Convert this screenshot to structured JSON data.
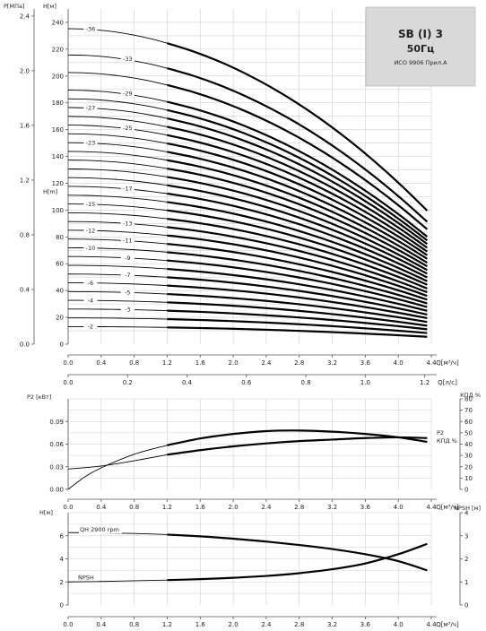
{
  "title_box": {
    "line1": "SB (I) 3",
    "line2": "50Гц",
    "line3": "ИСО 9906 Прил.А",
    "background": "#d9d9d9"
  },
  "chart_data": [
    {
      "type": "line",
      "id": "head",
      "ylabel_left": "P[МПа]",
      "ylabel_h": "H[м]",
      "ylabel_h_mid": "H[m]",
      "xlabel": "Q[м³/ч]",
      "xlabel_ls": "Q[л/с]",
      "x_ticks": [
        "0.0",
        "0.4",
        "0.8",
        "1.2",
        "1.6",
        "2.0",
        "2.4",
        "2.8",
        "3.2",
        "3.6",
        "4.0",
        "4.4"
      ],
      "x_ls_ticks": [
        "0.0",
        "0.2",
        "0.4",
        "0.6",
        "0.8",
        "1.0",
        "1.2"
      ],
      "xlim": [
        0,
        4.4
      ],
      "ylim": [
        0,
        250
      ],
      "grid": true,
      "h_ticks": [
        "0",
        "20",
        "40",
        "60",
        "80",
        "100",
        "120",
        "140",
        "160",
        "180",
        "200",
        "220",
        "240"
      ],
      "h_tick_values": [
        0,
        20,
        40,
        60,
        80,
        100,
        120,
        140,
        160,
        180,
        200,
        220,
        240
      ],
      "p_ticks": [
        "0.0",
        "0.4",
        "0.8",
        "1.2",
        "1.6",
        "2.0",
        "2.4"
      ],
      "p_tick_values": [
        0,
        0.4,
        0.8,
        1.2,
        1.6,
        2.0,
        2.4
      ],
      "stages_x": [
        0,
        1.2,
        4.35
      ],
      "series": [
        {
          "label": "-2",
          "values": [
            13.1,
            12.5,
            5.5
          ],
          "label_at": 0.2
        },
        {
          "label": "",
          "values": [
            19.6,
            18.7,
            8.3
          ],
          "label_at": null
        },
        {
          "label": "-3",
          "values": [
            26.2,
            25.0,
            11.1
          ],
          "label_at": 0.65
        },
        {
          "label": "-4",
          "values": [
            32.7,
            31.2,
            13.8
          ],
          "label_at": 0.2
        },
        {
          "label": "-5",
          "values": [
            39.2,
            37.4,
            16.6
          ],
          "label_at": 0.65
        },
        {
          "label": "-6",
          "values": [
            45.8,
            43.7,
            19.4
          ],
          "label_at": 0.2
        },
        {
          "label": "-7",
          "values": [
            52.3,
            49.9,
            22.1
          ],
          "label_at": 0.65
        },
        {
          "label": "",
          "values": [
            58.8,
            56.1,
            24.9
          ],
          "label_at": null
        },
        {
          "label": "-9",
          "values": [
            65.4,
            62.4,
            27.7
          ],
          "label_at": 0.65
        },
        {
          "label": "-10",
          "values": [
            71.9,
            68.6,
            30.4
          ],
          "label_at": 0.2
        },
        {
          "label": "-11",
          "values": [
            78.4,
            74.8,
            33.2
          ],
          "label_at": 0.65
        },
        {
          "label": "-12",
          "values": [
            85.0,
            81.1,
            36.0
          ],
          "label_at": 0.2
        },
        {
          "label": "-13",
          "values": [
            91.5,
            87.3,
            38.7
          ],
          "label_at": 0.65
        },
        {
          "label": "",
          "values": [
            98.0,
            93.5,
            41.5
          ],
          "label_at": null
        },
        {
          "label": "-15",
          "values": [
            104.6,
            99.8,
            44.3
          ],
          "label_at": 0.2
        },
        {
          "label": "",
          "values": [
            111.1,
            106.0,
            47.0
          ],
          "label_at": null
        },
        {
          "label": "-17",
          "values": [
            117.7,
            112.3,
            49.8
          ],
          "label_at": 0.65
        },
        {
          "label": "",
          "values": [
            124.2,
            118.5,
            52.6
          ],
          "label_at": null
        },
        {
          "label": "",
          "values": [
            130.7,
            124.7,
            55.3
          ],
          "label_at": null
        },
        {
          "label": "",
          "values": [
            137.3,
            131.0,
            58.1
          ],
          "label_at": null
        },
        {
          "label": "",
          "values": [
            143.8,
            137.2,
            60.8
          ],
          "label_at": null
        },
        {
          "label": "-23",
          "values": [
            150.3,
            143.4,
            63.6
          ],
          "label_at": 0.2
        },
        {
          "label": "",
          "values": [
            156.9,
            149.7,
            66.4
          ],
          "label_at": null
        },
        {
          "label": "-25",
          "values": [
            163.4,
            155.9,
            69.1
          ],
          "label_at": 0.65
        },
        {
          "label": "",
          "values": [
            169.9,
            162.1,
            71.9
          ],
          "label_at": null
        },
        {
          "label": "-27",
          "values": [
            176.5,
            168.4,
            74.7
          ],
          "label_at": 0.2
        },
        {
          "label": "",
          "values": [
            183.0,
            174.6,
            77.4
          ],
          "label_at": null
        },
        {
          "label": "-29",
          "values": [
            189.5,
            180.8,
            80.2
          ],
          "label_at": 0.65
        },
        {
          "label": "",
          "values": [
            202.6,
            193.3,
            85.7
          ],
          "label_at": null
        },
        {
          "label": "-33",
          "values": [
            215.7,
            205.8,
            91.3
          ],
          "label_at": 0.65
        },
        {
          "label": "-36",
          "values": [
            235.3,
            224.5,
            99.6
          ],
          "label_at": 0.2
        }
      ]
    },
    {
      "type": "line",
      "id": "power",
      "ylabel_left": "P2 [кВт]",
      "ylabel_right": "КПД %",
      "xlabel": "Q[м³/ч]",
      "x_ticks": [
        "0.0",
        "0.4",
        "0.8",
        "1.2",
        "1.6",
        "2.0",
        "2.4",
        "2.8",
        "3.2",
        "3.6",
        "4.0",
        "4.4"
      ],
      "xlim": [
        0,
        4.4
      ],
      "ylim": [
        0,
        0.12
      ],
      "y_ticks": [
        "0.00",
        "0.03",
        "0.06",
        "0.09"
      ],
      "y_tick_values": [
        0,
        0.03,
        0.06,
        0.09
      ],
      "y2lim": [
        0,
        80
      ],
      "y2_ticks": [
        "0",
        "10",
        "20",
        "30",
        "40",
        "50",
        "60",
        "70",
        "80"
      ],
      "y2_tick_values": [
        0,
        10,
        20,
        30,
        40,
        50,
        60,
        70,
        80
      ],
      "grid": true,
      "series": [
        {
          "name": "P2",
          "x": [
            0,
            0.4,
            0.8,
            1.2,
            1.6,
            2.0,
            2.4,
            2.8,
            3.2,
            3.6,
            4.0,
            4.35
          ],
          "values": [
            0.027,
            0.031,
            0.038,
            0.046,
            0.052,
            0.057,
            0.061,
            0.064,
            0.066,
            0.068,
            0.069,
            0.068
          ]
        },
        {
          "name": "КПД %",
          "x": [
            0,
            0.2,
            0.4,
            0.8,
            1.2,
            1.6,
            2.0,
            2.4,
            2.8,
            3.2,
            3.6,
            4.0,
            4.35
          ],
          "values": [
            0,
            11,
            19,
            31,
            39,
            45,
            49,
            51.5,
            52,
            51,
            49,
            46,
            42
          ]
        }
      ]
    },
    {
      "type": "line",
      "id": "npsh",
      "ylabel_left": "H[м]",
      "ylabel_right": "NPSH [м]",
      "xlabel": "Q[м³/ч]",
      "x_ticks": [
        "0.0",
        "0.4",
        "0.8",
        "1.2",
        "1.6",
        "2.0",
        "2.4",
        "2.8",
        "3.2",
        "3.6",
        "4.0",
        "4.4"
      ],
      "xlim": [
        0,
        4.4
      ],
      "ylim": [
        0,
        8
      ],
      "y_ticks": [
        "0",
        "2",
        "4",
        "6"
      ],
      "y_tick_values": [
        0,
        2,
        4,
        6
      ],
      "y2lim": [
        0,
        4
      ],
      "y2_ticks": [
        "0",
        "1",
        "2",
        "3",
        "4"
      ],
      "y2_tick_values": [
        0,
        1,
        2,
        3,
        4
      ],
      "grid": true,
      "labels": {
        "qh": "QH 2900 rpm",
        "npsh": "NPSH"
      },
      "series": [
        {
          "name": "QH 2900 rpm",
          "x": [
            0,
            0.4,
            0.8,
            1.2,
            1.6,
            2.0,
            2.4,
            2.8,
            3.2,
            3.6,
            4.0,
            4.35
          ],
          "values": [
            6.28,
            6.25,
            6.2,
            6.1,
            5.95,
            5.75,
            5.5,
            5.2,
            4.85,
            4.4,
            3.8,
            3.0
          ]
        },
        {
          "name": "NPSH",
          "x": [
            0,
            0.4,
            0.8,
            1.2,
            1.6,
            2.0,
            2.4,
            2.8,
            3.2,
            3.6,
            4.0,
            4.35
          ],
          "values": [
            1.0,
            1.02,
            1.05,
            1.08,
            1.12,
            1.18,
            1.26,
            1.38,
            1.55,
            1.8,
            2.2,
            2.65
          ]
        }
      ]
    }
  ]
}
